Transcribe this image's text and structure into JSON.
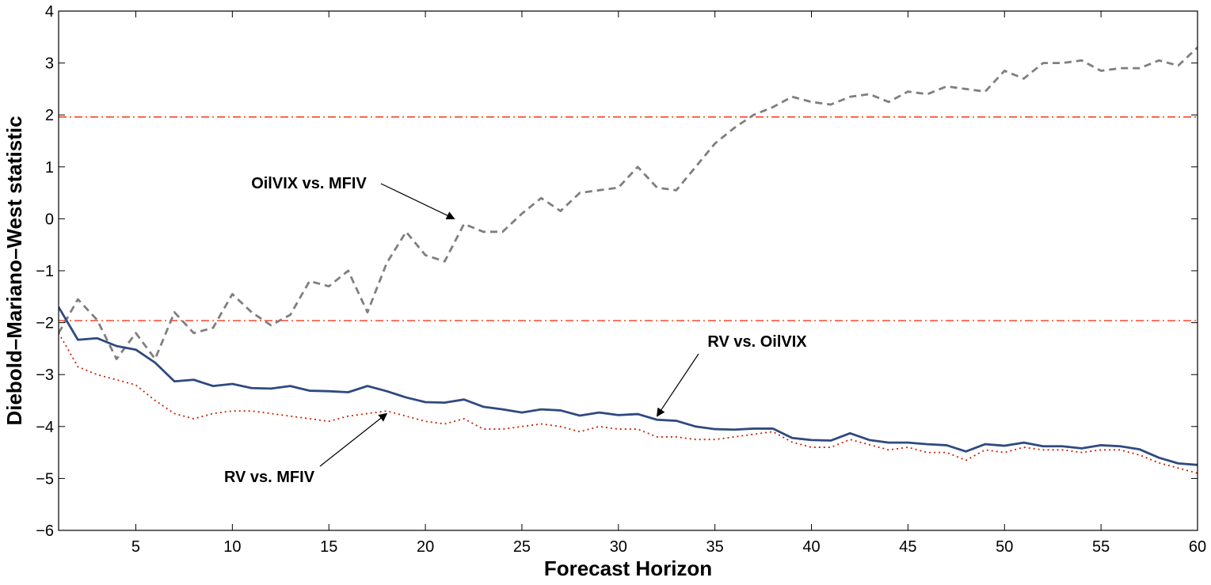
{
  "chart_data": {
    "type": "line",
    "xlabel": "Forecast Horizon",
    "ylabel": "Diebold–Mariano–West statistic",
    "xlim": [
      1,
      60
    ],
    "ylim": [
      -6,
      4
    ],
    "xticks": [
      5,
      10,
      15,
      20,
      25,
      30,
      35,
      40,
      45,
      50,
      55,
      60
    ],
    "yticks": [
      -6,
      -5,
      -4,
      -3,
      -2,
      -1,
      0,
      1,
      2,
      3,
      4
    ],
    "ytick_labels": [
      "−6",
      "−5",
      "−4",
      "−3",
      "−2",
      "−1",
      "0",
      "1",
      "2",
      "3",
      "4"
    ],
    "grid": false,
    "legend": "none",
    "x": [
      1,
      2,
      3,
      4,
      5,
      6,
      7,
      8,
      9,
      10,
      11,
      12,
      13,
      14,
      15,
      16,
      17,
      18,
      19,
      20,
      21,
      22,
      23,
      24,
      25,
      26,
      27,
      28,
      29,
      30,
      31,
      32,
      33,
      34,
      35,
      36,
      37,
      38,
      39,
      40,
      41,
      42,
      43,
      44,
      45,
      46,
      47,
      48,
      49,
      50,
      51,
      52,
      53,
      54,
      55,
      56,
      57,
      58,
      59,
      60
    ],
    "series": [
      {
        "color": "#7f7f7f",
        "style": "dashed",
        "values": [
          -2.2,
          -1.55,
          -1.95,
          -2.7,
          -2.2,
          -2.7,
          -1.8,
          -2.2,
          -2.1,
          -1.45,
          -1.8,
          -2.05,
          -1.85,
          -1.2,
          -1.3,
          -1.0,
          -1.8,
          -0.85,
          -0.25,
          -0.7,
          -0.82,
          -0.1,
          -0.25,
          -0.25,
          0.1,
          0.4,
          0.15,
          0.5,
          0.55,
          0.6,
          1.0,
          0.6,
          0.55,
          1.0,
          1.45,
          1.75,
          2.0,
          2.15,
          2.35,
          2.25,
          2.2,
          2.35,
          2.4,
          2.25,
          2.45,
          2.4,
          2.55,
          2.5,
          2.45,
          2.85,
          2.7,
          3.0,
          3.0,
          3.05,
          2.85,
          2.9,
          2.9,
          3.05,
          2.95,
          3.3
        ]
      },
      {
        "color": "#2f4a7f",
        "style": "solid",
        "values": [
          -1.7,
          -2.33,
          -2.3,
          -2.45,
          -2.52,
          -2.77,
          -3.13,
          -3.1,
          -3.22,
          -3.18,
          -3.26,
          -3.27,
          -3.22,
          -3.31,
          -3.32,
          -3.34,
          -3.22,
          -3.32,
          -3.44,
          -3.53,
          -3.54,
          -3.48,
          -3.62,
          -3.67,
          -3.73,
          -3.67,
          -3.69,
          -3.79,
          -3.73,
          -3.78,
          -3.76,
          -3.87,
          -3.89,
          -4.0,
          -4.05,
          -4.06,
          -4.04,
          -4.04,
          -4.22,
          -4.26,
          -4.27,
          -4.13,
          -4.26,
          -4.31,
          -4.31,
          -4.34,
          -4.36,
          -4.48,
          -4.34,
          -4.37,
          -4.31,
          -4.38,
          -4.38,
          -4.42,
          -4.36,
          -4.38,
          -4.44,
          -4.6,
          -4.71,
          -4.74
        ]
      },
      {
        "color": "#cc2200",
        "style": "dotted",
        "values": [
          -2.2,
          -2.85,
          -3.0,
          -3.1,
          -3.2,
          -3.5,
          -3.75,
          -3.85,
          -3.75,
          -3.7,
          -3.7,
          -3.75,
          -3.8,
          -3.85,
          -3.9,
          -3.8,
          -3.75,
          -3.7,
          -3.8,
          -3.9,
          -3.95,
          -3.85,
          -4.05,
          -4.05,
          -4.0,
          -3.95,
          -4.0,
          -4.1,
          -4.0,
          -4.05,
          -4.05,
          -4.2,
          -4.2,
          -4.25,
          -4.25,
          -4.2,
          -4.15,
          -4.1,
          -4.3,
          -4.4,
          -4.4,
          -4.25,
          -4.35,
          -4.45,
          -4.4,
          -4.5,
          -4.5,
          -4.65,
          -4.45,
          -4.5,
          -4.4,
          -4.45,
          -4.45,
          -4.5,
          -4.45,
          -4.45,
          -4.55,
          -4.7,
          -4.8,
          -4.9
        ]
      }
    ],
    "reference_lines": [
      {
        "y": 1.96,
        "color": "#ff2200",
        "style": "dashdot"
      },
      {
        "y": -1.96,
        "color": "#ff2200",
        "style": "dashdot"
      }
    ],
    "annotations": [
      {
        "text": "OilVIX vs. MFIV",
        "arrow_to": [
          21.5,
          0.0
        ]
      },
      {
        "text": "RV vs. OilVIX",
        "arrow_to": [
          32,
          -3.8
        ]
      },
      {
        "text": "RV vs. MFIV",
        "arrow_to": [
          18,
          -3.75
        ]
      }
    ]
  }
}
